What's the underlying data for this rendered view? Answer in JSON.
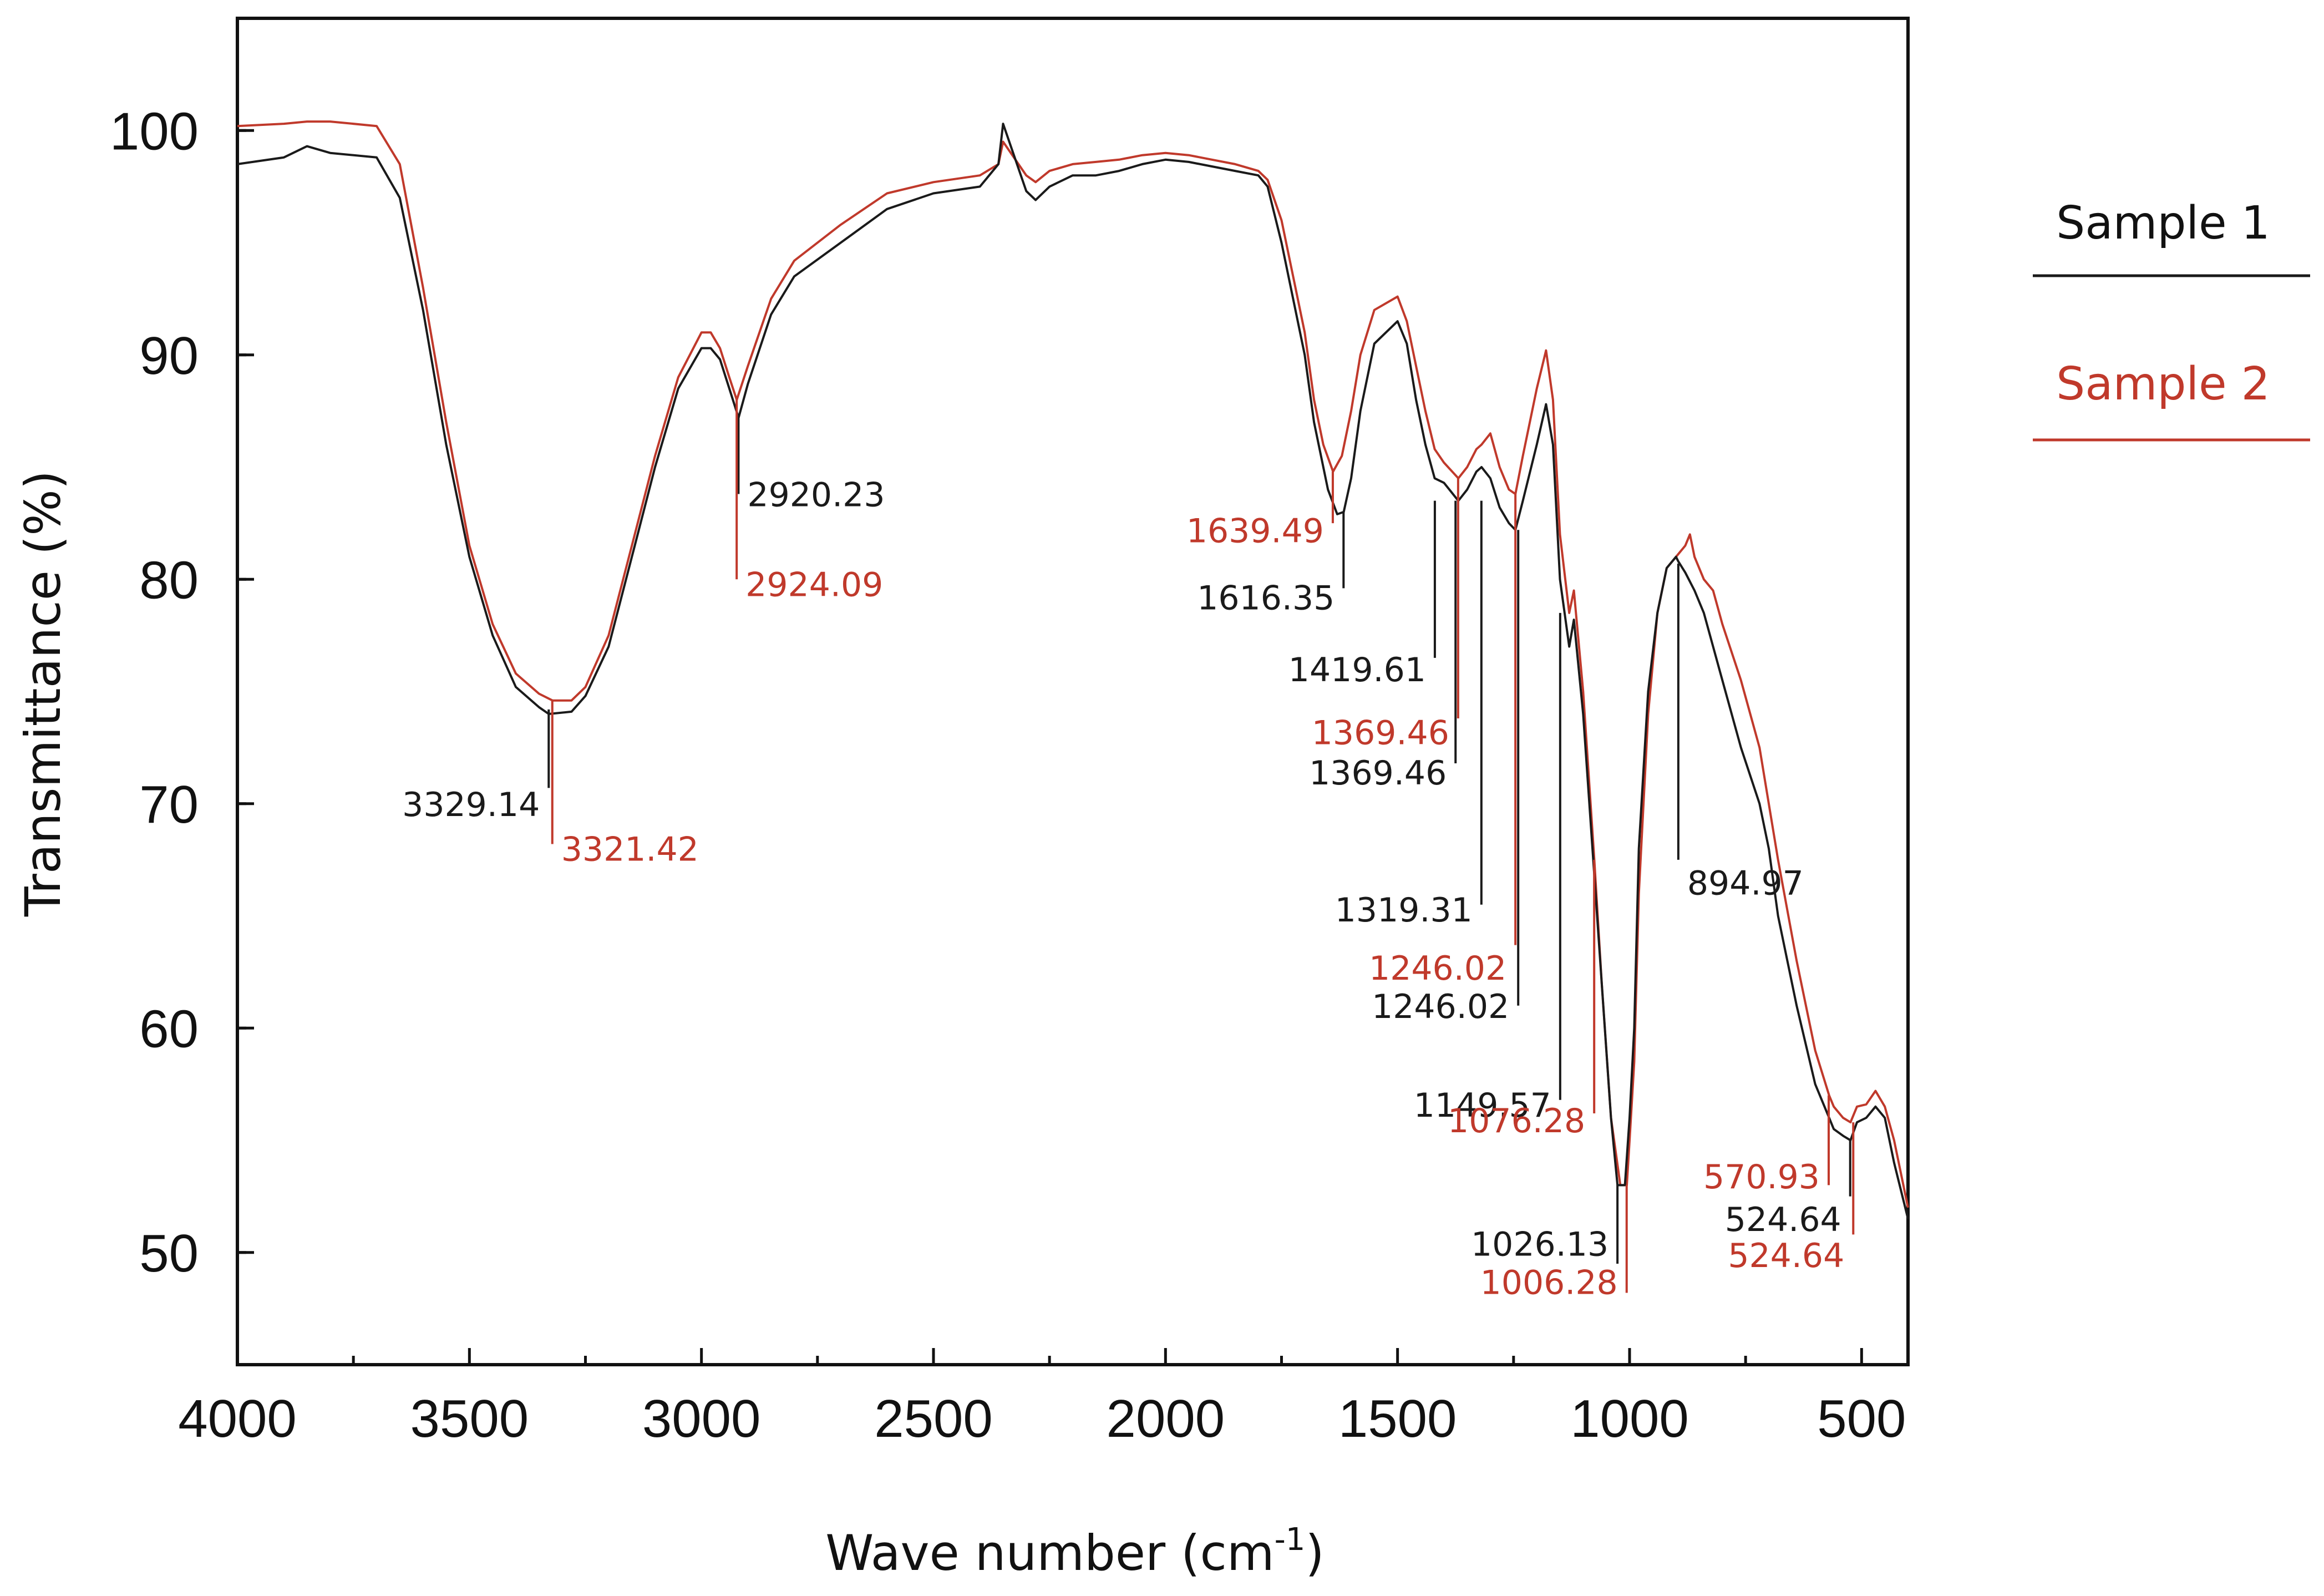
{
  "chart_data": {
    "type": "line",
    "title": "",
    "xlabel": "Wave number (cm",
    "xlabel_sup": "-1",
    "xlabel_end": ")",
    "ylabel": "Transmittance (%)",
    "xlim": [
      4000,
      400
    ],
    "ylim": [
      45,
      105
    ],
    "xticks": [
      4000,
      3500,
      3000,
      2500,
      2000,
      1500,
      1000,
      500
    ],
    "xtick_labels": [
      "4000",
      "3500",
      "3000",
      "2500",
      "2000",
      "1500",
      "1000",
      "500"
    ],
    "yticks": [
      50,
      60,
      70,
      80,
      90,
      100
    ],
    "ytick_labels": [
      "50",
      "60",
      "70",
      "80",
      "90",
      "100"
    ],
    "grid": false,
    "legend_position": "right",
    "series": [
      {
        "name": "Sample 1",
        "color": "#1a1a1a",
        "x": [
          4000,
          3900,
          3850,
          3800,
          3700,
          3650,
          3600,
          3550,
          3500,
          3450,
          3400,
          3350,
          3329,
          3280,
          3250,
          3200,
          3150,
          3100,
          3050,
          3000,
          2980,
          2960,
          2940,
          2920,
          2900,
          2850,
          2800,
          2700,
          2600,
          2500,
          2400,
          2360,
          2350,
          2300,
          2280,
          2250,
          2200,
          2150,
          2100,
          2050,
          2000,
          1950,
          1900,
          1850,
          1800,
          1780,
          1750,
          1700,
          1680,
          1650,
          1630,
          1616,
          1600,
          1580,
          1550,
          1500,
          1480,
          1460,
          1440,
          1420,
          1400,
          1369,
          1350,
          1330,
          1319,
          1300,
          1280,
          1260,
          1246,
          1230,
          1200,
          1180,
          1165,
          1150,
          1130,
          1120,
          1100,
          1080,
          1060,
          1040,
          1026,
          1010,
          1000,
          990,
          980,
          960,
          940,
          920,
          900,
          895,
          880,
          860,
          840,
          820,
          800,
          760,
          720,
          700,
          680,
          640,
          600,
          570,
          560,
          540,
          524,
          510,
          490,
          470,
          450,
          430,
          400
        ],
        "y": [
          98.5,
          98.8,
          99.3,
          99.0,
          98.8,
          97.0,
          92.0,
          86.0,
          81.0,
          77.5,
          75.2,
          74.3,
          74.0,
          74.1,
          74.8,
          77.0,
          81.0,
          85.0,
          88.5,
          90.3,
          90.3,
          89.8,
          88.5,
          87.2,
          88.7,
          91.8,
          93.5,
          95.0,
          96.5,
          97.2,
          97.5,
          98.5,
          100.3,
          97.3,
          96.9,
          97.5,
          98.0,
          98.0,
          98.2,
          98.5,
          98.7,
          98.6,
          98.4,
          98.2,
          98.0,
          97.5,
          95.0,
          90.0,
          87.0,
          84.0,
          82.9,
          83.0,
          84.5,
          87.5,
          90.5,
          91.5,
          90.5,
          88.0,
          86.0,
          84.5,
          84.3,
          83.5,
          84.0,
          84.8,
          85.0,
          84.5,
          83.2,
          82.5,
          82.2,
          83.5,
          86.0,
          87.8,
          86.0,
          80.0,
          77.0,
          78.2,
          74.0,
          68.0,
          62.0,
          56.0,
          53.0,
          53.0,
          56.0,
          60.0,
          68.0,
          75.0,
          78.5,
          80.5,
          81.0,
          80.8,
          80.3,
          79.5,
          78.5,
          77.0,
          75.5,
          72.5,
          70.0,
          68.0,
          65.0,
          61.0,
          57.5,
          56.0,
          55.5,
          55.2,
          55.0,
          55.8,
          56.0,
          56.5,
          56.0,
          54.0,
          51.5
        ]
      },
      {
        "name": "Sample 2",
        "color": "#c0392b",
        "x": [
          4000,
          3900,
          3850,
          3800,
          3700,
          3650,
          3600,
          3550,
          3500,
          3450,
          3400,
          3350,
          3321,
          3280,
          3250,
          3200,
          3150,
          3100,
          3050,
          3000,
          2980,
          2960,
          2940,
          2924,
          2900,
          2850,
          2800,
          2700,
          2600,
          2500,
          2400,
          2360,
          2350,
          2300,
          2280,
          2250,
          2200,
          2150,
          2100,
          2050,
          2000,
          1950,
          1900,
          1850,
          1800,
          1780,
          1750,
          1700,
          1680,
          1660,
          1639,
          1620,
          1600,
          1580,
          1550,
          1500,
          1480,
          1460,
          1440,
          1420,
          1400,
          1369,
          1350,
          1330,
          1319,
          1300,
          1280,
          1260,
          1246,
          1230,
          1200,
          1180,
          1165,
          1150,
          1130,
          1120,
          1100,
          1076,
          1060,
          1040,
          1020,
          1006,
          1000,
          990,
          980,
          960,
          940,
          920,
          900,
          880,
          870,
          860,
          840,
          820,
          800,
          760,
          720,
          700,
          680,
          640,
          600,
          570,
          560,
          540,
          524,
          510,
          490,
          470,
          450,
          430,
          400
        ],
        "y": [
          100.2,
          100.3,
          100.4,
          100.4,
          100.2,
          98.5,
          93.0,
          87.0,
          81.5,
          78.0,
          75.8,
          74.9,
          74.6,
          74.6,
          75.2,
          77.5,
          81.5,
          85.5,
          89.0,
          91.0,
          91.0,
          90.3,
          89.0,
          88.0,
          89.5,
          92.5,
          94.2,
          95.8,
          97.2,
          97.7,
          98.0,
          98.5,
          99.5,
          98.0,
          97.7,
          98.2,
          98.5,
          98.6,
          98.7,
          98.9,
          99.0,
          98.9,
          98.7,
          98.5,
          98.2,
          97.8,
          96.0,
          91.0,
          88.0,
          86.0,
          84.8,
          85.5,
          87.5,
          90.0,
          92.0,
          92.6,
          91.5,
          89.5,
          87.5,
          85.8,
          85.2,
          84.5,
          85.0,
          85.8,
          86.0,
          86.5,
          85.0,
          84.0,
          83.8,
          85.5,
          88.5,
          90.2,
          88.0,
          82.0,
          78.5,
          79.5,
          75.0,
          67.5,
          62.0,
          56.0,
          53.0,
          53.0,
          55.0,
          58.5,
          66.0,
          74.0,
          78.5,
          80.5,
          81.0,
          81.5,
          82.0,
          81.0,
          80.0,
          79.5,
          78.0,
          75.5,
          72.5,
          70.0,
          67.5,
          63.0,
          59.0,
          57.0,
          56.5,
          56.0,
          55.8,
          56.5,
          56.6,
          57.2,
          56.5,
          55.0,
          52.0
        ]
      }
    ],
    "annotations": [
      {
        "series": "Sample 1",
        "text": "3329.14",
        "x": 3329.14,
        "y_top": 74.2,
        "y_bottom": 70.7,
        "label_y": 70.0,
        "side": "left"
      },
      {
        "series": "Sample 2",
        "text": "3321.42",
        "x": 3321.42,
        "y_top": 74.6,
        "y_bottom": 68.2,
        "label_y": 68.0,
        "side": "right"
      },
      {
        "series": "Sample 1",
        "text": "2920.23",
        "x": 2920.23,
        "y_top": 87.3,
        "y_bottom": 83.8,
        "label_y": 83.8,
        "side": "right"
      },
      {
        "series": "Sample 2",
        "text": "2924.09",
        "x": 2924.09,
        "y_top": 88.0,
        "y_bottom": 80.0,
        "label_y": 79.8,
        "side": "right"
      },
      {
        "series": "Sample 2",
        "text": "1639.49",
        "x": 1639.49,
        "y_top": 84.8,
        "y_bottom": 82.5,
        "label_y": 82.2,
        "side": "left"
      },
      {
        "series": "Sample 1",
        "text": "1616.35",
        "x": 1616.35,
        "y_top": 83.0,
        "y_bottom": 79.6,
        "label_y": 79.2,
        "side": "left"
      },
      {
        "series": "Sample 1",
        "text": "1419.61",
        "x": 1419.61,
        "y_top": 83.5,
        "y_bottom": 76.5,
        "label_y": 76.0,
        "side": "left"
      },
      {
        "series": "Sample 2",
        "text": "1369.46",
        "x": 1369.46,
        "y_top": 84.5,
        "y_bottom": 73.8,
        "label_y": 73.2,
        "side": "left"
      },
      {
        "series": "Sample 1",
        "text": "1369.46",
        "x": 1375.0,
        "y_top": 83.5,
        "y_bottom": 71.8,
        "label_y": 71.4,
        "side": "left"
      },
      {
        "series": "Sample 1",
        "text": "1319.31",
        "x": 1319.31,
        "y_top": 83.5,
        "y_bottom": 65.5,
        "label_y": 65.3,
        "side": "left"
      },
      {
        "series": "Sample 2",
        "text": "1246.02",
        "x": 1246.02,
        "y_top": 83.8,
        "y_bottom": 63.7,
        "label_y": 62.7,
        "side": "left"
      },
      {
        "series": "Sample 1",
        "text": "1246.02",
        "x": 1240.0,
        "y_top": 82.2,
        "y_bottom": 61.0,
        "label_y": 61.0,
        "side": "left"
      },
      {
        "series": "Sample 1",
        "text": "1149.57",
        "x": 1149.57,
        "y_top": 78.5,
        "y_bottom": 56.8,
        "label_y": 56.6,
        "side": "left"
      },
      {
        "series": "Sample 2",
        "text": "1076.28",
        "x": 1076.28,
        "y_top": 67.5,
        "y_bottom": 56.2,
        "label_y": 55.9,
        "side": "left"
      },
      {
        "series": "Sample 1",
        "text": "1026.13",
        "x": 1026.13,
        "y_top": 53.0,
        "y_bottom": 49.5,
        "label_y": 50.4,
        "side": "left"
      },
      {
        "series": "Sample 2",
        "text": "1006.28",
        "x": 1006.28,
        "y_top": 53.0,
        "y_bottom": 48.2,
        "label_y": 48.7,
        "side": "left"
      },
      {
        "series": "Sample 1",
        "text": "894.97",
        "x": 894.97,
        "y_top": 80.7,
        "y_bottom": 67.5,
        "label_y": 66.5,
        "side": "right"
      },
      {
        "series": "Sample 2",
        "text": "570.93",
        "x": 570.93,
        "y_top": 57.0,
        "y_bottom": 53.0,
        "label_y": 53.4,
        "side": "left"
      },
      {
        "series": "Sample 1",
        "text": "524.64",
        "x": 524.64,
        "y_top": 55.0,
        "y_bottom": 52.5,
        "label_y": 51.5,
        "side": "left"
      },
      {
        "series": "Sample 2",
        "text": "524.64",
        "x": 518.0,
        "y_top": 55.8,
        "y_bottom": 50.8,
        "label_y": 49.9,
        "side": "left"
      }
    ]
  }
}
